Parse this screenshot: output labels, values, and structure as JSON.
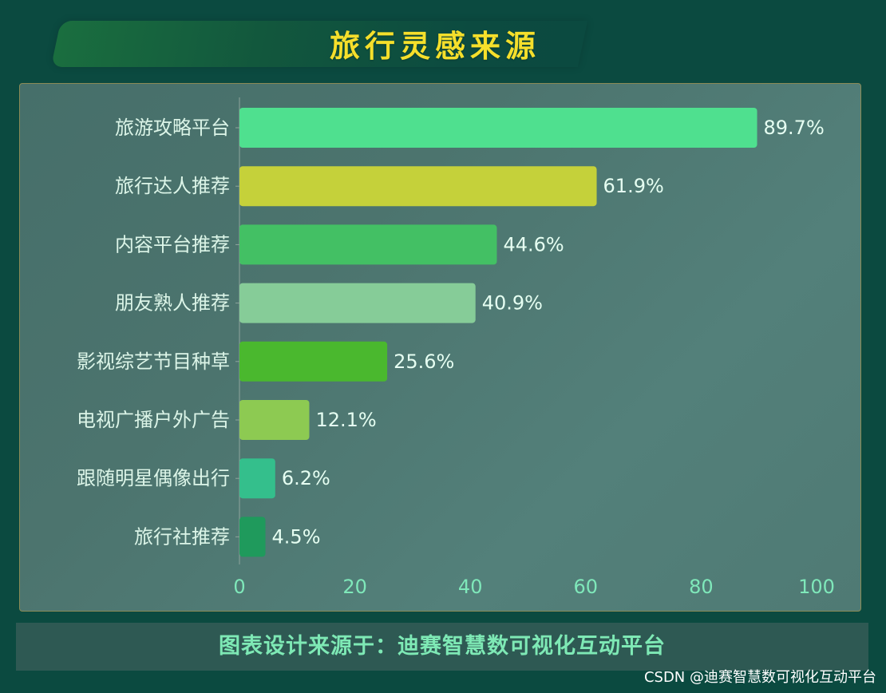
{
  "title": "旅行灵感来源",
  "footer": "图表设计来源于：迪赛智慧数可视化互动平台",
  "watermark": "CSDN @迪赛智慧数可视化互动平台",
  "colors": {
    "page_bg": "#0b4a40",
    "title": "#f5df2b",
    "footer_text": "#7ee9b5",
    "label_text": "#dcf5e8",
    "value_text": "#e6fff2",
    "axis_tick_text": "#7fe8ba",
    "axis_line": "#8fa59d"
  },
  "chart_data": {
    "type": "bar",
    "orientation": "horizontal",
    "categories": [
      "旅游攻略平台",
      "旅行达人推荐",
      "内容平台推荐",
      "朋友熟人推荐",
      "影视综艺节目种草",
      "电视广播户外广告",
      "跟随明星偶像出行",
      "旅行社推荐"
    ],
    "values": [
      89.7,
      61.9,
      44.6,
      40.9,
      25.6,
      12.1,
      6.2,
      4.5
    ],
    "value_labels": [
      "89.7%",
      "61.9%",
      "44.6%",
      "40.9%",
      "25.6%",
      "12.1%",
      "6.2%",
      "4.5%"
    ],
    "bar_colors": [
      "#4fe08f",
      "#c5d13a",
      "#43c064",
      "#86cc98",
      "#4ab82e",
      "#8dca52",
      "#34bf8c",
      "#1f9a5c"
    ],
    "xlim": [
      0,
      100
    ],
    "xticks": [
      "0",
      "20",
      "40",
      "60",
      "80",
      "100"
    ],
    "grid": false,
    "legend": "none"
  }
}
